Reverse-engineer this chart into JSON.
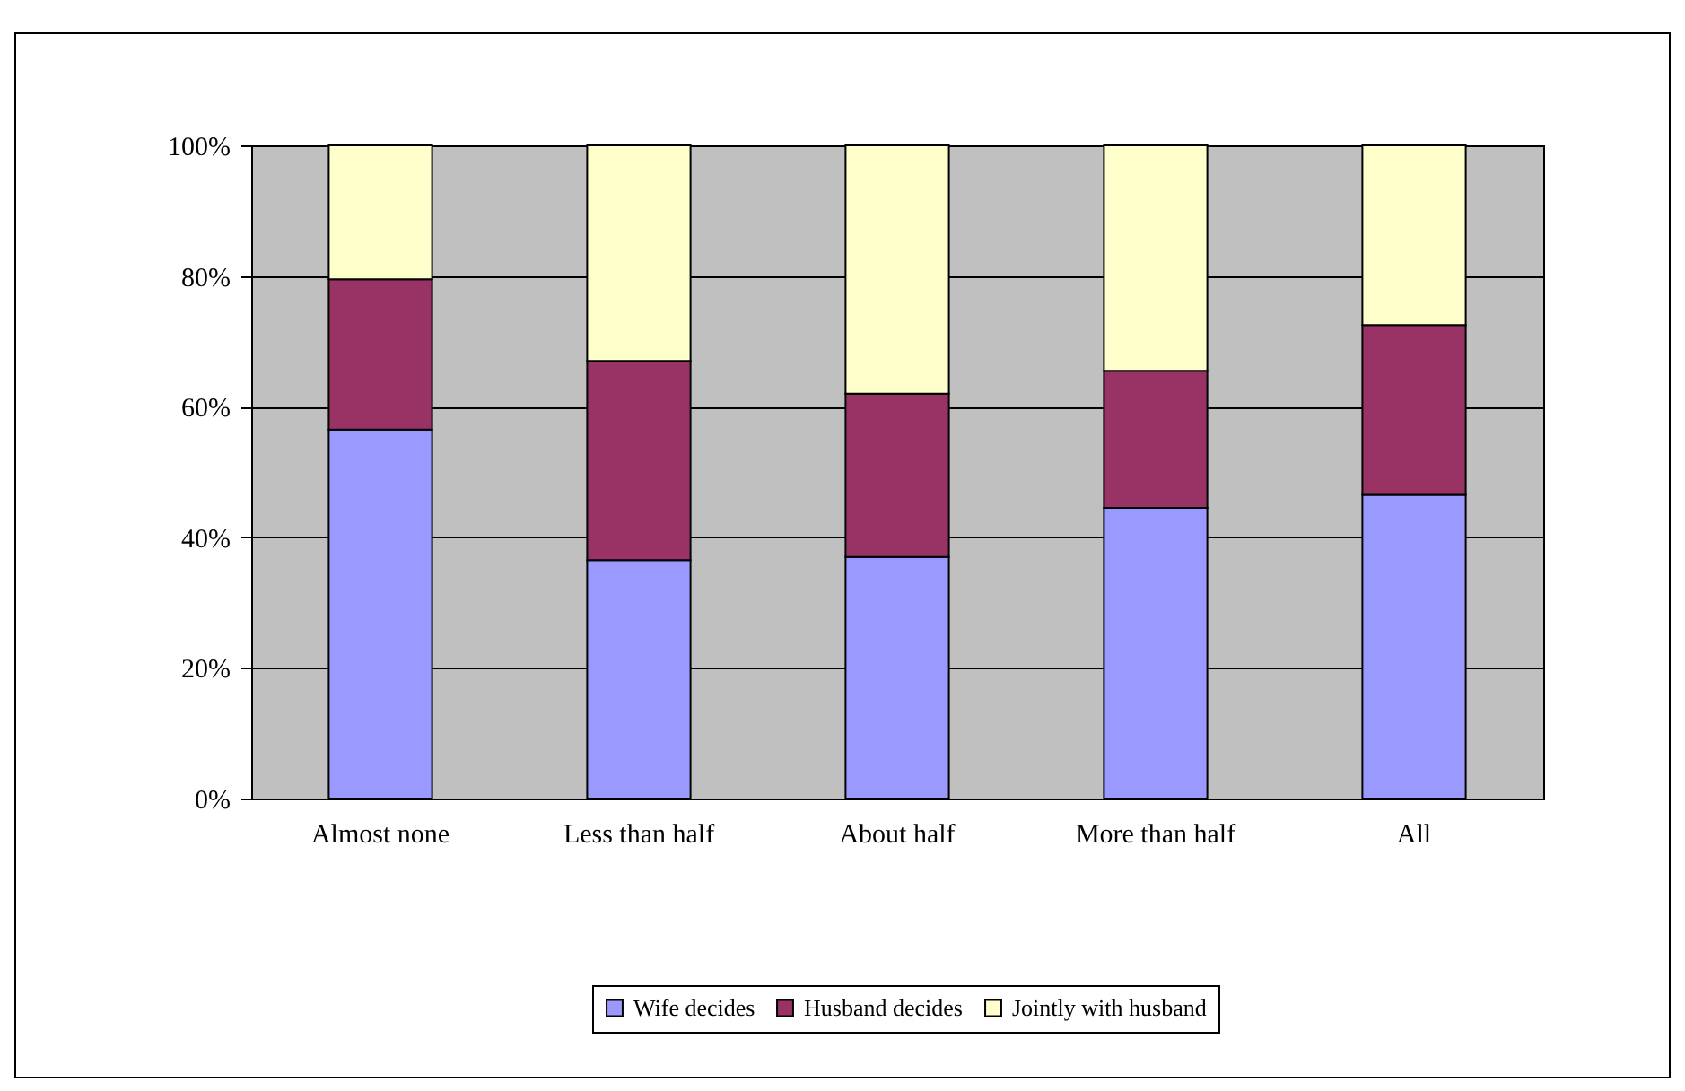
{
  "chart_data": {
    "type": "bar",
    "stacked": true,
    "categories": [
      "Almost none",
      "Less than half",
      "About half",
      "More than half",
      "All"
    ],
    "series": [
      {
        "name": "Wife decides",
        "color": "#9999ff",
        "values": [
          56.5,
          36.5,
          37,
          44.5,
          46.5
        ]
      },
      {
        "name": "Husband decides",
        "color": "#993366",
        "values": [
          23,
          30.5,
          25,
          21,
          26
        ]
      },
      {
        "name": "Jointly with husband",
        "color": "#ffffcc",
        "values": [
          20.5,
          33,
          38,
          34.5,
          27.5
        ]
      }
    ],
    "ylim": [
      0,
      100
    ],
    "yticks": [
      {
        "value": 0,
        "label": "0%"
      },
      {
        "value": 20,
        "label": "20%"
      },
      {
        "value": 40,
        "label": "40%"
      },
      {
        "value": 60,
        "label": "60%"
      },
      {
        "value": 80,
        "label": "80%"
      },
      {
        "value": 100,
        "label": "100%"
      }
    ],
    "grid": "y",
    "legend": "bottom"
  }
}
